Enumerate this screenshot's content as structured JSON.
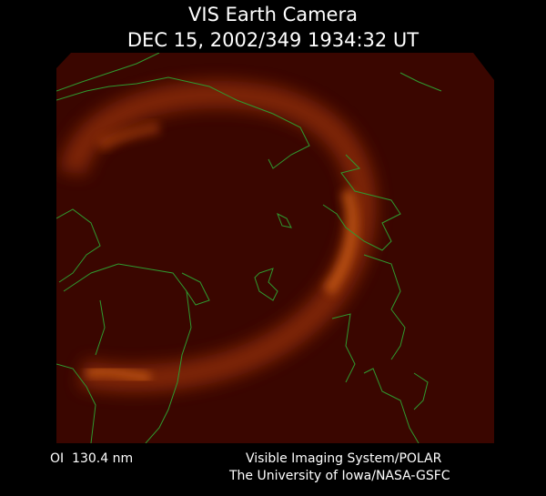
{
  "header": {
    "title": "VIS Earth Camera",
    "timestamp": "DEC 15, 2002/349 1934:32 UT"
  },
  "footer": {
    "filter": "OI  130.4 nm",
    "instrument": "Visible Imaging System/POLAR",
    "credit": "The University of Iowa/NASA-GSFC"
  }
}
